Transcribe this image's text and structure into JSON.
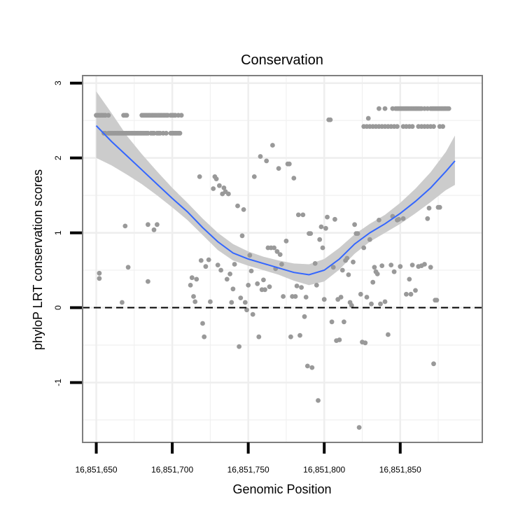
{
  "chart_data": {
    "type": "scatter",
    "title": "Conservation",
    "xlabel": "Genomic Position",
    "ylabel": "phyloP LRT conservation scores",
    "xlim": [
      16851641,
      16851904
    ],
    "ylim": [
      -1.8,
      3.1
    ],
    "x_ticks": [
      16851650,
      16851700,
      16851750,
      16851800,
      16851850
    ],
    "x_tick_labels": [
      "16,851,650",
      "16,851,700",
      "16,851,750",
      "16,851,800",
      "16,851,850"
    ],
    "y_ticks": [
      -1,
      0,
      1,
      2,
      3
    ],
    "y_tick_labels": [
      "-1",
      "0",
      "1",
      "2",
      "3"
    ],
    "grid": true,
    "reference_line": {
      "y": 0,
      "style": "dashed"
    },
    "colors": {
      "points": "#999999",
      "smooth_line": "#3366FF",
      "ribbon": "#cccccc",
      "grid": "#eeeeee",
      "border": "#7f7f7f"
    },
    "points": [
      [
        16851650,
        2.57
      ],
      [
        16851651,
        2.57
      ],
      [
        16851652,
        2.57
      ],
      [
        16851653,
        2.57
      ],
      [
        16851654,
        2.57
      ],
      [
        16851655,
        2.57
      ],
      [
        16851656,
        2.57
      ],
      [
        16851658,
        2.57
      ],
      [
        16851668,
        2.57
      ],
      [
        16851669,
        2.57
      ],
      [
        16851670,
        2.57
      ],
      [
        16851680,
        2.57
      ],
      [
        16851681,
        2.57
      ],
      [
        16851682,
        2.57
      ],
      [
        16851683,
        2.57
      ],
      [
        16851684,
        2.57
      ],
      [
        16851685,
        2.57
      ],
      [
        16851686,
        2.57
      ],
      [
        16851687,
        2.57
      ],
      [
        16851688,
        2.57
      ],
      [
        16851689,
        2.57
      ],
      [
        16851690,
        2.57
      ],
      [
        16851691,
        2.57
      ],
      [
        16851692,
        2.57
      ],
      [
        16851693,
        2.57
      ],
      [
        16851694,
        2.57
      ],
      [
        16851695,
        2.57
      ],
      [
        16851696,
        2.57
      ],
      [
        16851697,
        2.57
      ],
      [
        16851699,
        2.57
      ],
      [
        16851700,
        2.57
      ],
      [
        16851701,
        2.57
      ],
      [
        16851702,
        2.57
      ],
      [
        16851704,
        2.57
      ],
      [
        16851706,
        2.57
      ],
      [
        16851655,
        2.33
      ],
      [
        16851656,
        2.33
      ],
      [
        16851658,
        2.33
      ],
      [
        16851659,
        2.33
      ],
      [
        16851660,
        2.33
      ],
      [
        16851661,
        2.33
      ],
      [
        16851662,
        2.33
      ],
      [
        16851663,
        2.33
      ],
      [
        16851664,
        2.33
      ],
      [
        16851665,
        2.33
      ],
      [
        16851666,
        2.33
      ],
      [
        16851667,
        2.33
      ],
      [
        16851668,
        2.33
      ],
      [
        16851669,
        2.33
      ],
      [
        16851670,
        2.33
      ],
      [
        16851671,
        2.33
      ],
      [
        16851672,
        2.33
      ],
      [
        16851673,
        2.33
      ],
      [
        16851674,
        2.33
      ],
      [
        16851675,
        2.33
      ],
      [
        16851676,
        2.33
      ],
      [
        16851677,
        2.33
      ],
      [
        16851678,
        2.33
      ],
      [
        16851679,
        2.33
      ],
      [
        16851680,
        2.33
      ],
      [
        16851681,
        2.33
      ],
      [
        16851682,
        2.33
      ],
      [
        16851683,
        2.33
      ],
      [
        16851684,
        2.33
      ],
      [
        16851686,
        2.33
      ],
      [
        16851687,
        2.33
      ],
      [
        16851688,
        2.33
      ],
      [
        16851690,
        2.33
      ],
      [
        16851691,
        2.33
      ],
      [
        16851692,
        2.33
      ],
      [
        16851694,
        2.33
      ],
      [
        16851696,
        2.33
      ],
      [
        16851699,
        2.33
      ],
      [
        16851700,
        2.33
      ],
      [
        16851701,
        2.33
      ],
      [
        16851702,
        2.33
      ],
      [
        16851703,
        2.33
      ],
      [
        16851704,
        2.33
      ],
      [
        16851705,
        2.33
      ],
      [
        16851652,
        0.46
      ],
      [
        16851652,
        0.39
      ],
      [
        16851669,
        1.09
      ],
      [
        16851671,
        0.54
      ],
      [
        16851667,
        0.07
      ],
      [
        16851684,
        1.11
      ],
      [
        16851684,
        0.35
      ],
      [
        16851688,
        1.04
      ],
      [
        16851690,
        1.11
      ],
      [
        16851712,
        0.3
      ],
      [
        16851713,
        0.4
      ],
      [
        16851714,
        0.15
      ],
      [
        16851715,
        0.08
      ],
      [
        16851716,
        0.38
      ],
      [
        16851718,
        1.75
      ],
      [
        16851719,
        0.63
      ],
      [
        16851720,
        -0.21
      ],
      [
        16851721,
        -0.39
      ],
      [
        16851722,
        0.55
      ],
      [
        16851724,
        0.64
      ],
      [
        16851725,
        0.08
      ],
      [
        16851727,
        1.59
      ],
      [
        16851728,
        1.75
      ],
      [
        16851729,
        1.72
      ],
      [
        16851730,
        0.57
      ],
      [
        16851731,
        1.63
      ],
      [
        16851732,
        0.5
      ],
      [
        16851733,
        1.52
      ],
      [
        16851734,
        1.6
      ],
      [
        16851735,
        1.55
      ],
      [
        16851736,
        0.38
      ],
      [
        16851737,
        1.52
      ],
      [
        16851738,
        0.45
      ],
      [
        16851739,
        0.07
      ],
      [
        16851740,
        0.25
      ],
      [
        16851741,
        0.58
      ],
      [
        16851743,
        1.36
      ],
      [
        16851744,
        -0.52
      ],
      [
        16851745,
        0.13
      ],
      [
        16851746,
        0.96
      ],
      [
        16851747,
        1.31
      ],
      [
        16851748,
        0.07
      ],
      [
        16851749,
        -0.03
      ],
      [
        16851750,
        0.3
      ],
      [
        16851751,
        0.7
      ],
      [
        16851752,
        0.49
      ],
      [
        16851753,
        -0.09
      ],
      [
        16851754,
        1.75
      ],
      [
        16851756,
        0.32
      ],
      [
        16851757,
        -0.39
      ],
      [
        16851758,
        2.02
      ],
      [
        16851759,
        0.24
      ],
      [
        16851760,
        0.37
      ],
      [
        16851761,
        0.24
      ],
      [
        16851762,
        1.96
      ],
      [
        16851763,
        0.8
      ],
      [
        16851764,
        0.28
      ],
      [
        16851765,
        0.8
      ],
      [
        16851766,
        2.17
      ],
      [
        16851767,
        0.8
      ],
      [
        16851768,
        0.52
      ],
      [
        16851769,
        0.75
      ],
      [
        16851770,
        1.86
      ],
      [
        16851771,
        0.71
      ],
      [
        16851772,
        0.58
      ],
      [
        16851773,
        0.15
      ],
      [
        16851775,
        0.89
      ],
      [
        16851776,
        1.92
      ],
      [
        16851777,
        1.92
      ],
      [
        16851778,
        -0.39
      ],
      [
        16851779,
        0.15
      ],
      [
        16851780,
        1.73
      ],
      [
        16851781,
        0.15
      ],
      [
        16851782,
        0.29
      ],
      [
        16851783,
        1.24
      ],
      [
        16851784,
        -0.37
      ],
      [
        16851785,
        0.27
      ],
      [
        16851786,
        1.24
      ],
      [
        16851787,
        -0.12
      ],
      [
        16851788,
        0.14
      ],
      [
        16851789,
        -0.78
      ],
      [
        16851790,
        0.99
      ],
      [
        16851791,
        0.99
      ],
      [
        16851792,
        -0.8
      ],
      [
        16851794,
        0.59
      ],
      [
        16851795,
        0.3
      ],
      [
        16851796,
        -1.24
      ],
      [
        16851797,
        0.91
      ],
      [
        16851798,
        1.08
      ],
      [
        16851799,
        0.8
      ],
      [
        16851800,
        0.11
      ],
      [
        16851801,
        1.06
      ],
      [
        16851802,
        1.21
      ],
      [
        16851803,
        2.51
      ],
      [
        16851804,
        2.51
      ],
      [
        16851805,
        -0.19
      ],
      [
        16851806,
        0.54
      ],
      [
        16851807,
        1.18
      ],
      [
        16851808,
        -0.44
      ],
      [
        16851809,
        0.11
      ],
      [
        16851810,
        -0.43
      ],
      [
        16851811,
        0.14
      ],
      [
        16851812,
        0.5
      ],
      [
        16851813,
        -0.19
      ],
      [
        16851814,
        0.63
      ],
      [
        16851815,
        0.66
      ],
      [
        16851816,
        0.44
      ],
      [
        16851817,
        0.07
      ],
      [
        16851818,
        0.03
      ],
      [
        16851819,
        0.61
      ],
      [
        16851820,
        1.11
      ],
      [
        16851821,
        0.99
      ],
      [
        16851822,
        0.99
      ],
      [
        16851823,
        -1.6
      ],
      [
        16851824,
        0.18
      ],
      [
        16851825,
        -0.46
      ],
      [
        16851826,
        0.8
      ],
      [
        16851827,
        -0.47
      ],
      [
        16851828,
        0.14
      ],
      [
        16851829,
        2.53
      ],
      [
        16851830,
        0.91
      ],
      [
        16851831,
        0.05
      ],
      [
        16851832,
        0.34
      ],
      [
        16851833,
        0.54
      ],
      [
        16851834,
        0.48
      ],
      [
        16851835,
        0.45
      ],
      [
        16851836,
        1.17
      ],
      [
        16851837,
        0.05
      ],
      [
        16851838,
        0.56
      ],
      [
        16851840,
        0.08
      ],
      [
        16851842,
        -0.36
      ],
      [
        16851844,
        0.57
      ],
      [
        16851845,
        1.22
      ],
      [
        16851846,
        0.48
      ],
      [
        16851848,
        1.17
      ],
      [
        16851849,
        1.18
      ],
      [
        16851850,
        0.55
      ],
      [
        16851852,
        1.19
      ],
      [
        16851854,
        0.18
      ],
      [
        16851856,
        0.38
      ],
      [
        16851857,
        0.18
      ],
      [
        16851858,
        0.57
      ],
      [
        16851860,
        0.23
      ],
      [
        16851862,
        0.55
      ],
      [
        16851864,
        0.56
      ],
      [
        16851866,
        0.58
      ],
      [
        16851868,
        1.19
      ],
      [
        16851869,
        1.33
      ],
      [
        16851870,
        0.54
      ],
      [
        16851872,
        -0.75
      ],
      [
        16851873,
        0.1
      ],
      [
        16851874,
        0.1
      ],
      [
        16851875,
        1.34
      ],
      [
        16851876,
        1.34
      ],
      [
        16851836,
        2.66
      ],
      [
        16851840,
        2.66
      ],
      [
        16851845,
        2.66
      ],
      [
        16851847,
        2.66
      ],
      [
        16851848,
        2.66
      ],
      [
        16851849,
        2.66
      ],
      [
        16851850,
        2.66
      ],
      [
        16851851,
        2.66
      ],
      [
        16851852,
        2.66
      ],
      [
        16851853,
        2.66
      ],
      [
        16851854,
        2.66
      ],
      [
        16851855,
        2.66
      ],
      [
        16851856,
        2.66
      ],
      [
        16851857,
        2.66
      ],
      [
        16851858,
        2.66
      ],
      [
        16851859,
        2.66
      ],
      [
        16851860,
        2.66
      ],
      [
        16851861,
        2.66
      ],
      [
        16851862,
        2.66
      ],
      [
        16851863,
        2.66
      ],
      [
        16851864,
        2.66
      ],
      [
        16851866,
        2.66
      ],
      [
        16851868,
        2.66
      ],
      [
        16851870,
        2.66
      ],
      [
        16851871,
        2.66
      ],
      [
        16851872,
        2.66
      ],
      [
        16851873,
        2.66
      ],
      [
        16851874,
        2.66
      ],
      [
        16851875,
        2.66
      ],
      [
        16851876,
        2.66
      ],
      [
        16851877,
        2.66
      ],
      [
        16851878,
        2.66
      ],
      [
        16851879,
        2.66
      ],
      [
        16851880,
        2.66
      ],
      [
        16851881,
        2.66
      ],
      [
        16851882,
        2.66
      ],
      [
        16851826,
        2.42
      ],
      [
        16851828,
        2.42
      ],
      [
        16851830,
        2.42
      ],
      [
        16851832,
        2.42
      ],
      [
        16851834,
        2.42
      ],
      [
        16851836,
        2.42
      ],
      [
        16851838,
        2.42
      ],
      [
        16851840,
        2.42
      ],
      [
        16851842,
        2.42
      ],
      [
        16851844,
        2.42
      ],
      [
        16851846,
        2.42
      ],
      [
        16851848,
        2.42
      ],
      [
        16851852,
        2.42
      ],
      [
        16851854,
        2.42
      ],
      [
        16851856,
        2.42
      ],
      [
        16851858,
        2.42
      ],
      [
        16851862,
        2.42
      ],
      [
        16851864,
        2.42
      ],
      [
        16851866,
        2.42
      ],
      [
        16851868,
        2.42
      ],
      [
        16851870,
        2.42
      ],
      [
        16851872,
        2.42
      ],
      [
        16851876,
        2.42
      ],
      [
        16851878,
        2.42
      ]
    ],
    "smooth": {
      "x": [
        16851650,
        16851660,
        16851670,
        16851680,
        16851690,
        16851700,
        16851710,
        16851720,
        16851730,
        16851740,
        16851750,
        16851760,
        16851770,
        16851780,
        16851790,
        16851800,
        16851810,
        16851820,
        16851830,
        16851840,
        16851850,
        16851860,
        16851870,
        16851880,
        16851886
      ],
      "y": [
        2.43,
        2.22,
        2.03,
        1.84,
        1.65,
        1.46,
        1.28,
        1.07,
        0.88,
        0.73,
        0.65,
        0.59,
        0.53,
        0.47,
        0.44,
        0.5,
        0.65,
        0.85,
        1.0,
        1.12,
        1.26,
        1.42,
        1.6,
        1.82,
        1.96
      ],
      "lower": [
        2.0,
        1.9,
        1.78,
        1.65,
        1.5,
        1.34,
        1.17,
        0.97,
        0.77,
        0.63,
        0.56,
        0.5,
        0.44,
        0.36,
        0.3,
        0.35,
        0.51,
        0.72,
        0.88,
        1.0,
        1.12,
        1.26,
        1.41,
        1.57,
        1.64
      ],
      "upper": [
        2.89,
        2.6,
        2.3,
        2.05,
        1.82,
        1.6,
        1.4,
        1.19,
        1.0,
        0.85,
        0.75,
        0.68,
        0.63,
        0.59,
        0.58,
        0.65,
        0.8,
        0.98,
        1.12,
        1.24,
        1.4,
        1.59,
        1.81,
        2.08,
        2.3
      ]
    }
  }
}
